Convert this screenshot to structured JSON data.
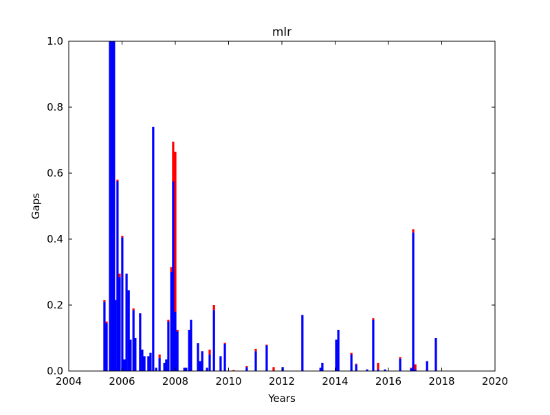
{
  "chart_data": {
    "type": "stacked_bar",
    "title": "mlr",
    "xlabel": "Years",
    "ylabel": "Gaps",
    "x": [
      2005.34,
      2005.42,
      2005.55,
      2005.63,
      2005.7,
      2005.75,
      2005.83,
      2005.91,
      2006.01,
      2006.09,
      2006.17,
      2006.25,
      2006.32,
      2006.43,
      2006.5,
      2006.68,
      2006.76,
      2006.84,
      2006.99,
      2007.07,
      2007.17,
      2007.28,
      2007.41,
      2007.59,
      2007.66,
      2007.74,
      2007.85,
      2007.92,
      2008.0,
      2008.08,
      2008.34,
      2008.41,
      2008.52,
      2008.59,
      2008.85,
      2008.93,
      2009.01,
      2009.19,
      2009.29,
      2009.45,
      2009.7,
      2009.86,
      2010.19,
      2010.68,
      2011.02,
      2011.43,
      2011.69,
      2012.03,
      2012.77,
      2013.45,
      2013.52,
      2014.04,
      2014.12,
      2014.61,
      2014.79,
      2015.2,
      2015.43,
      2015.61,
      2015.87,
      2016.44,
      2016.85,
      2016.93,
      2017.01,
      2017.45,
      2017.78
    ],
    "series": [
      {
        "color": "#0000ff",
        "values": [
          0.21,
          0.145,
          1.0,
          1.0,
          1.0,
          0.215,
          0.575,
          0.285,
          0.405,
          0.035,
          0.295,
          0.245,
          0.095,
          0.185,
          0.1,
          0.175,
          0.065,
          0.045,
          0.045,
          0.055,
          0.74,
          0.01,
          0.04,
          0.025,
          0.035,
          0.15,
          0.3,
          0.575,
          0.18,
          0.12,
          0.01,
          0.01,
          0.125,
          0.155,
          0.085,
          0.03,
          0.06,
          0.01,
          0.05,
          0.185,
          0.045,
          0.082,
          0.0,
          0.012,
          0.06,
          0.078,
          0.0,
          0.012,
          0.17,
          0.01,
          0.025,
          0.095,
          0.125,
          0.05,
          0.02,
          0.005,
          0.155,
          0.005,
          0.005,
          0.038,
          0.008,
          0.42,
          0.005,
          0.03,
          0.1
        ]
      },
      {
        "color": "#ff0000",
        "values": [
          0.005,
          0.005,
          0.0,
          0.0,
          0.0,
          0.0,
          0.005,
          0.01,
          0.005,
          0.0,
          0.0,
          0.0,
          0.0,
          0.005,
          0.0,
          0.0,
          0.0,
          0.0,
          0.0,
          0.0,
          0.0,
          0.0,
          0.01,
          0.0,
          0.0,
          0.005,
          0.015,
          0.12,
          0.485,
          0.005,
          0.0,
          0.0,
          0.0,
          0.0,
          0.0,
          0.0,
          0.0,
          0.0,
          0.015,
          0.015,
          0.0,
          0.004,
          0.003,
          0.003,
          0.007,
          0.002,
          0.012,
          0.0,
          0.0,
          0.0,
          0.0,
          0.0,
          0.0,
          0.005,
          0.002,
          0.0,
          0.005,
          0.02,
          0.0,
          0.004,
          0.002,
          0.01,
          0.015,
          0.0,
          0.0
        ]
      }
    ],
    "xlim": [
      2004,
      2020
    ],
    "xticks": [
      2004,
      2006,
      2008,
      2010,
      2012,
      2014,
      2016,
      2018,
      2020
    ],
    "ylim": [
      0,
      1
    ],
    "yticks": [
      {
        "value": 0,
        "label": "0.0"
      },
      0.2,
      0.4,
      0.6,
      0.8,
      {
        "value": 1,
        "label": "1.0"
      }
    ]
  }
}
